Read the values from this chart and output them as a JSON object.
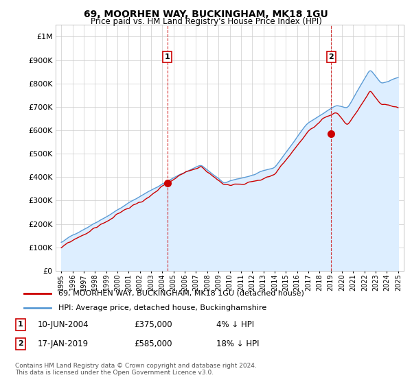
{
  "title": "69, MOORHEN WAY, BUCKINGHAM, MK18 1GU",
  "subtitle": "Price paid vs. HM Land Registry's House Price Index (HPI)",
  "legend_line1": "69, MOORHEN WAY, BUCKINGHAM, MK18 1GU (detached house)",
  "legend_line2": "HPI: Average price, detached house, Buckinghamshire",
  "footnote": "Contains HM Land Registry data © Crown copyright and database right 2024.\nThis data is licensed under the Open Government Licence v3.0.",
  "sale1_date": "10-JUN-2004",
  "sale1_price": "£375,000",
  "sale1_hpi": "4% ↓ HPI",
  "sale1_x": 2004.45,
  "sale1_y": 375000,
  "sale2_date": "17-JAN-2019",
  "sale2_price": "£585,000",
  "sale2_hpi": "18% ↓ HPI",
  "sale2_x": 2019.04,
  "sale2_y": 585000,
  "hpi_color": "#5b9bd5",
  "hpi_fill": "#ddeeff",
  "price_color": "#cc0000",
  "vline_color": "#cc0000",
  "ylim_min": 0,
  "ylim_max": 1050000,
  "xlim_min": 1994.5,
  "xlim_max": 2025.5,
  "background": "#ffffff",
  "grid_color": "#cccccc",
  "label_box_color": "#cc0000",
  "yticks": [
    0,
    100000,
    200000,
    300000,
    400000,
    500000,
    600000,
    700000,
    800000,
    900000,
    1000000
  ],
  "ytick_labels": [
    "£0",
    "£100K",
    "£200K",
    "£300K",
    "£400K",
    "£500K",
    "£600K",
    "£700K",
    "£800K",
    "£900K",
    "£1M"
  ],
  "xtick_start": 1995,
  "xtick_end": 2025
}
